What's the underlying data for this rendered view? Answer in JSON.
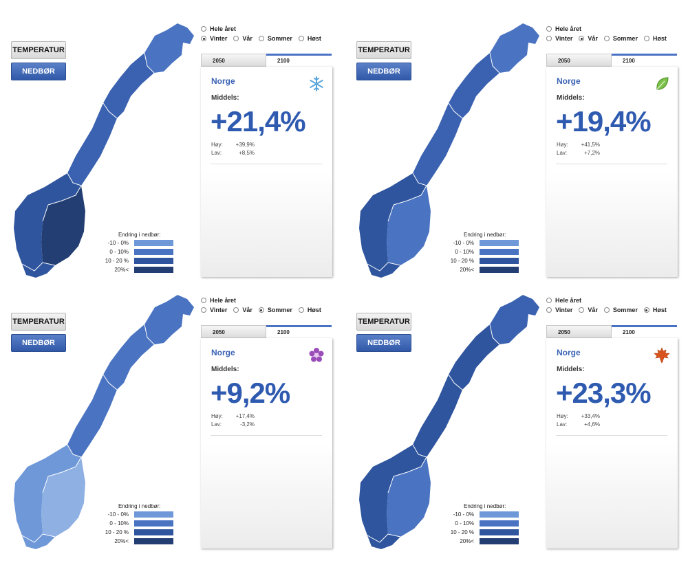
{
  "buttons": {
    "temperature": "TEMPERATUR",
    "precipitation": "NEDBØR"
  },
  "radio_labels": [
    "Hele året",
    "Vinter",
    "Vår",
    "Sommer",
    "Høst"
  ],
  "tabs": [
    "2050",
    "2100"
  ],
  "legend": {
    "title": "Endring i nedbør:",
    "items": [
      {
        "label": "-10 - 0%",
        "color": "#6f98d8"
      },
      {
        "label": "0 - 10%",
        "color": "#4a74c2"
      },
      {
        "label": "10 - 20 %",
        "color": "#2f559e"
      },
      {
        "label": "20%<",
        "color": "#233e73"
      }
    ]
  },
  "colors": {
    "accent": "#3b63b5",
    "tab_active": "#4a72c4"
  },
  "panels": [
    {
      "season": "Vinter",
      "selected_radio": 1,
      "active_tab": 1,
      "region": "Norge",
      "middels_label": "Middels:",
      "value": "+21,4%",
      "hoy_label": "Høy:",
      "hoy": "+39,9%",
      "lav_label": "Lav:",
      "lav": "+8,5%",
      "icon": "snowflake-icon",
      "map_colors": {
        "north": "#4a74c2",
        "mid": "#3a62b0",
        "west": "#2f559e",
        "east": "#233e73"
      }
    },
    {
      "season": "Vår",
      "selected_radio": 2,
      "active_tab": 1,
      "region": "Norge",
      "middels_label": "Middels:",
      "value": "+19,4%",
      "hoy_label": "Høy:",
      "hoy": "+41,5%",
      "lav_label": "Lav:",
      "lav": "+7,2%",
      "icon": "leaf-icon",
      "map_colors": {
        "north": "#4a74c2",
        "mid": "#3a62b0",
        "west": "#2f559e",
        "east": "#4a74c2"
      }
    },
    {
      "season": "Sommer",
      "selected_radio": 3,
      "active_tab": 1,
      "region": "Norge",
      "middels_label": "Middels:",
      "value": "+9,2%",
      "hoy_label": "Høy:",
      "hoy": "+17,4%",
      "lav_label": "Lav:",
      "lav": "-3,2%",
      "icon": "flower-icon",
      "map_colors": {
        "north": "#4a74c2",
        "mid": "#4a74c2",
        "west": "#6f98d8",
        "east": "#8eb0e3"
      }
    },
    {
      "season": "Høst",
      "selected_radio": 4,
      "active_tab": 1,
      "region": "Norge",
      "middels_label": "Middels:",
      "value": "+23,3%",
      "hoy_label": "Høy:",
      "hoy": "+33,4%",
      "lav_label": "Lav:",
      "lav": "+4,6%",
      "icon": "maple-leaf-icon",
      "map_colors": {
        "north": "#3a62b0",
        "mid": "#2f559e",
        "west": "#2f559e",
        "east": "#4a74c2"
      }
    }
  ]
}
